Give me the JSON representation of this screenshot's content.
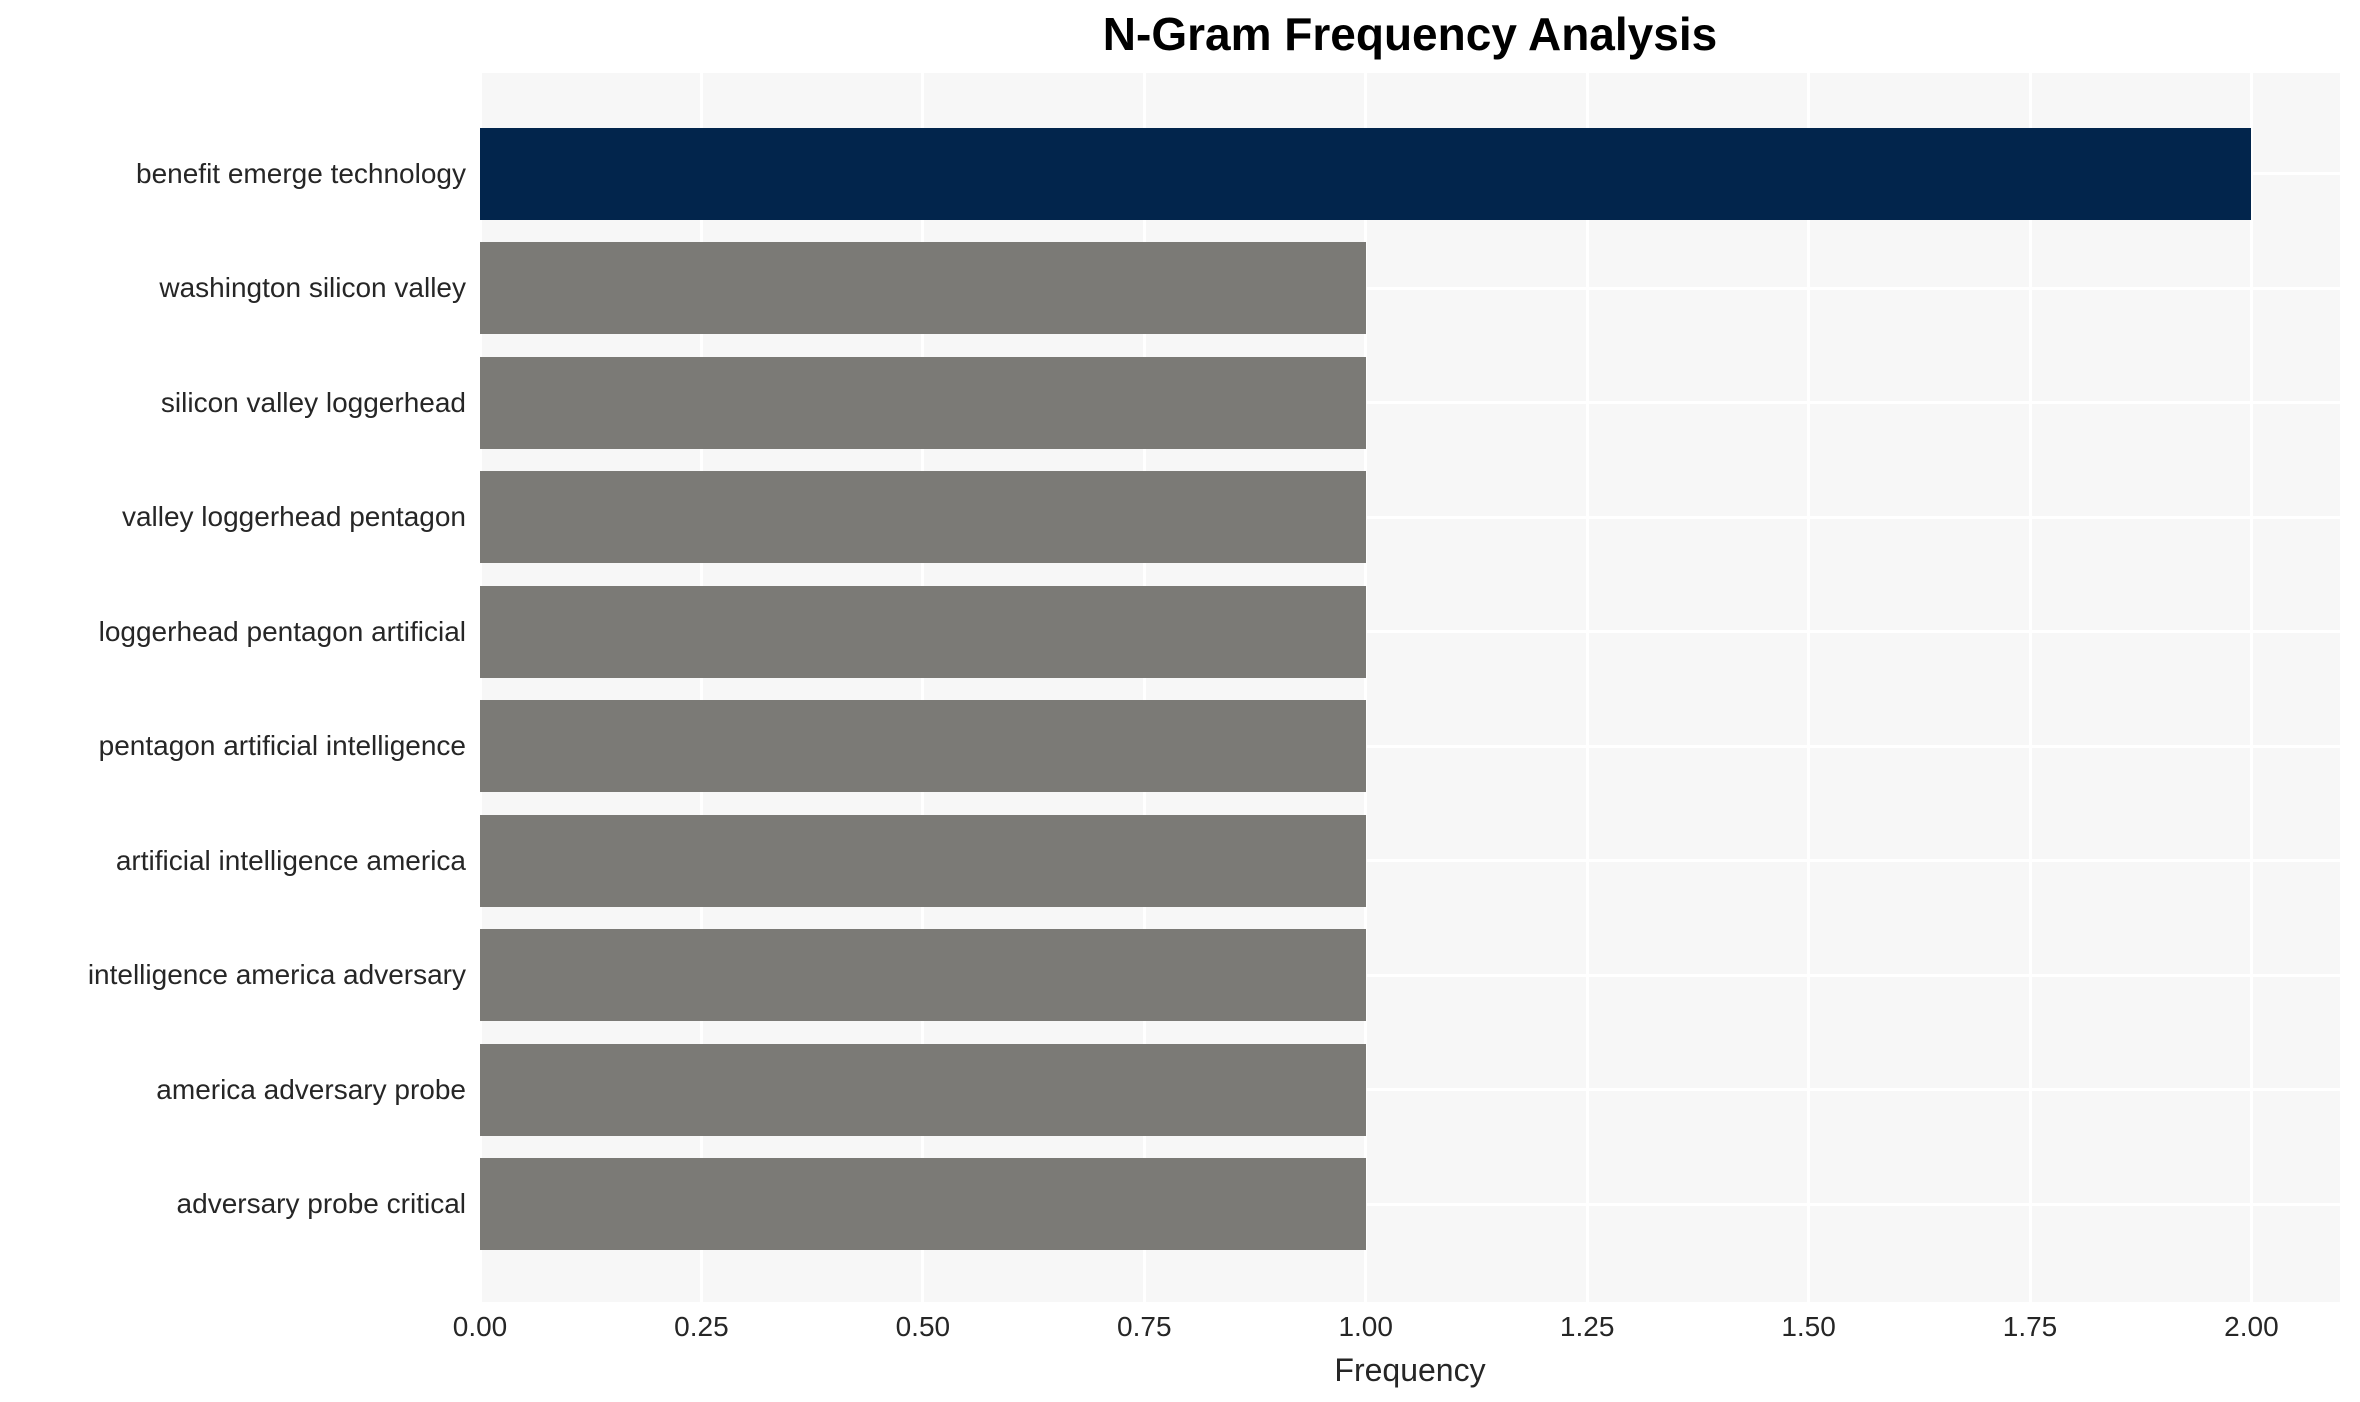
{
  "chart_data": {
    "type": "bar",
    "orientation": "horizontal",
    "title": "N-Gram Frequency Analysis",
    "xlabel": "Frequency",
    "categories": [
      "benefit emerge technology",
      "washington silicon valley",
      "silicon valley loggerhead",
      "valley loggerhead pentagon",
      "loggerhead pentagon artificial",
      "pentagon artificial intelligence",
      "artificial intelligence america",
      "intelligence america adversary",
      "america adversary probe",
      "adversary probe critical"
    ],
    "values": [
      2,
      1,
      1,
      1,
      1,
      1,
      1,
      1,
      1,
      1
    ],
    "bar_colors": [
      "#02254c",
      "#7b7a76",
      "#7b7a76",
      "#7b7a76",
      "#7b7a76",
      "#7b7a76",
      "#7b7a76",
      "#7b7a76",
      "#7b7a76",
      "#7b7a76"
    ],
    "xtick_labels": [
      "0.00",
      "0.25",
      "0.50",
      "0.75",
      "1.00",
      "1.25",
      "1.50",
      "1.75",
      "2.00"
    ],
    "xtick_values": [
      0,
      0.25,
      0.5,
      0.75,
      1.0,
      1.25,
      1.5,
      1.75,
      2.0
    ],
    "xlim": [
      0,
      2.1
    ],
    "grid": true,
    "legend_visible": false,
    "colors": {
      "plot_background": "#f7f7f7",
      "gridline": "#ffffff",
      "tick_text": "#262626",
      "title_text": "#000000"
    }
  }
}
